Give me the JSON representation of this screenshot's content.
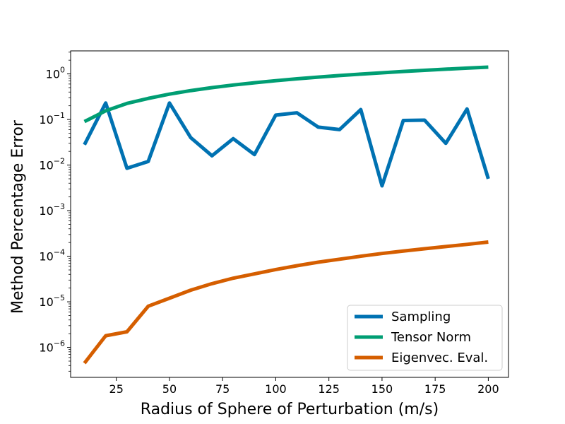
{
  "chart_data": {
    "type": "line",
    "xlabel": "Radius of Sphere of Perturbation (m/s)",
    "ylabel": "Method Percentage Error",
    "xlim": [
      3.5,
      209.5
    ],
    "ylim": [
      2.2e-07,
      3.2
    ],
    "yscale": "log",
    "grid": false,
    "legend_position": "lower-right",
    "x_ticks": [
      {
        "value": 25,
        "label": "25"
      },
      {
        "value": 50,
        "label": "50"
      },
      {
        "value": 75,
        "label": "75"
      },
      {
        "value": 100,
        "label": "100"
      },
      {
        "value": 125,
        "label": "125"
      },
      {
        "value": 150,
        "label": "150"
      },
      {
        "value": 175,
        "label": "175"
      },
      {
        "value": 200,
        "label": "200"
      }
    ],
    "y_ticks": [
      {
        "value": 1e-06,
        "base": "10",
        "exp": "−6"
      },
      {
        "value": 1e-05,
        "base": "10",
        "exp": "−5"
      },
      {
        "value": 0.0001,
        "base": "10",
        "exp": "−4"
      },
      {
        "value": 0.001,
        "base": "10",
        "exp": "−3"
      },
      {
        "value": 0.01,
        "base": "10",
        "exp": "−2"
      },
      {
        "value": 0.1,
        "base": "10",
        "exp": "−1"
      },
      {
        "value": 1,
        "base": "10",
        "exp": "0"
      }
    ],
    "x": [
      10,
      20,
      30,
      40,
      50,
      60,
      70,
      80,
      90,
      100,
      110,
      120,
      130,
      140,
      150,
      160,
      170,
      180,
      190,
      200
    ],
    "series": [
      {
        "name": "Sampling",
        "color": "#0072B2",
        "values": [
          0.028,
          0.23,
          0.0085,
          0.012,
          0.23,
          0.04,
          0.016,
          0.038,
          0.017,
          0.125,
          0.14,
          0.068,
          0.06,
          0.165,
          0.0035,
          0.095,
          0.097,
          0.03,
          0.17,
          0.005
        ]
      },
      {
        "name": "Tensor Norm",
        "color": "#009E73",
        "values": [
          0.09,
          0.155,
          0.225,
          0.29,
          0.36,
          0.43,
          0.5,
          0.57,
          0.64,
          0.71,
          0.78,
          0.85,
          0.92,
          0.99,
          1.06,
          1.13,
          1.2,
          1.27,
          1.34,
          1.41
        ]
      },
      {
        "name": "Eigenvec. Eval.",
        "color": "#D55E00",
        "values": [
          4.5e-07,
          1.8e-06,
          2.2e-06,
          8e-06,
          1.2e-05,
          1.8e-05,
          2.5e-05,
          3.3e-05,
          4.1e-05,
          5.1e-05,
          6.2e-05,
          7.4e-05,
          8.6e-05,
          0.0001,
          0.000115,
          0.00013,
          0.000146,
          0.000163,
          0.000182,
          0.000205
        ]
      }
    ]
  }
}
